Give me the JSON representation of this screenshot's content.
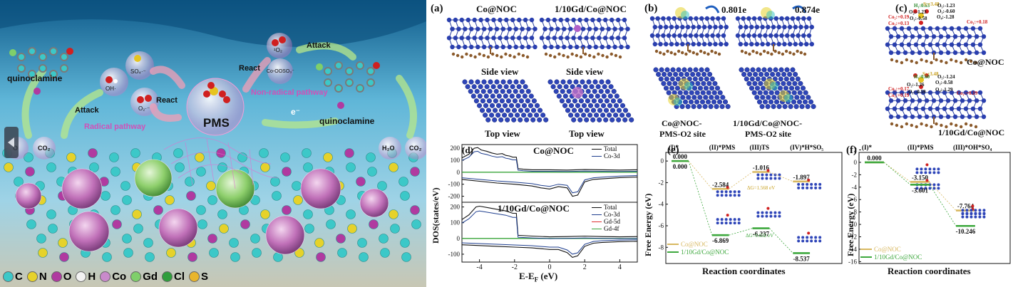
{
  "scheme": {
    "labels": {
      "quinoclamine_left": "quinoclamine",
      "quinoclamine_right": "quinoclamine",
      "pms": "PMS",
      "radical_pathway": "Radical pathway",
      "nonradical_pathway": "Non-radical pathway",
      "attack_left": "Attack",
      "attack_right": "Attack",
      "react_left": "React",
      "react_right": "React",
      "electron": "e⁻",
      "oh_radical": "OH·",
      "so4_radical": "SO₄·⁻",
      "o2_radical": "O₂·⁻",
      "singlet_o2": "¹O₂",
      "co_ooso3": "Co-OOSO₃⁻",
      "h2o_left": "O",
      "co2_left": "CO₂",
      "h2o_right": "H₂O",
      "co2_right": "CO₂"
    },
    "legend": [
      {
        "symbol": "C",
        "color": "#3cc8c8"
      },
      {
        "symbol": "N",
        "color": "#e6d22a"
      },
      {
        "symbol": "O",
        "color": "#b03aa0"
      },
      {
        "symbol": "H",
        "color": "#f2f2f2"
      },
      {
        "symbol": "Co",
        "color": "#c98acb"
      },
      {
        "symbol": "Gd",
        "color": "#7fcf6a"
      },
      {
        "symbol": "Cl",
        "color": "#2f9e3c"
      },
      {
        "symbol": "S",
        "color": "#e9b52c"
      }
    ]
  },
  "panel_a": {
    "tag": "(a)",
    "col1": "Co@NOC",
    "col2": "1/10Gd/Co@NOC",
    "side": "Side view",
    "top": "Top view"
  },
  "panel_b": {
    "tag": "(b)",
    "charge1": "0.801e",
    "charge2": "0.874e",
    "site1_l1": "Co@NOC-",
    "site1_l2": "PMS-O2 site",
    "site2_l1": "1/10Gd/Co@NOC-",
    "site2_l2": "PMS-O2 site"
  },
  "panel_c": {
    "tag": "(c)",
    "name_top": "Co@NOC",
    "name_bottom": "1/10Gd/Co@NOC",
    "charges_top": [
      {
        "t": "H₁:0.63",
        "c": "#2e8b2e"
      },
      {
        "t": "S:+3.48",
        "c": "#c8a020"
      },
      {
        "t": "O₅:-1.23",
        "c": "#111"
      },
      {
        "t": "O₂:-1.23",
        "c": "#111"
      },
      {
        "t": "O₃:-0.60",
        "c": "#111"
      },
      {
        "t": "O₁:-0.58",
        "c": "#111"
      },
      {
        "t": "O₄:-1.28",
        "c": "#111"
      },
      {
        "t": "Co₂:+0.19",
        "c": "#d02020"
      },
      {
        "t": "Co₁:+0.18",
        "c": "#d02020"
      },
      {
        "t": "Co₃:+0.13",
        "c": "#d02020"
      }
    ],
    "charges_bottom": [
      {
        "t": "H₁:0.60",
        "c": "#2e8b2e"
      },
      {
        "t": "S:+3.48",
        "c": "#c8a020"
      },
      {
        "t": "O₅:-1.24",
        "c": "#111"
      },
      {
        "t": "O₂:-1.26",
        "c": "#111"
      },
      {
        "t": "O₃:-0.58",
        "c": "#111"
      },
      {
        "t": "O₄:-1.29",
        "c": "#111"
      },
      {
        "t": "O₁:-0.59",
        "c": "#111"
      },
      {
        "t": "Co₂:+0.17",
        "c": "#d02020"
      },
      {
        "t": "Co₃:+0.19",
        "c": "#d02020"
      },
      {
        "t": "Co₁:+0.19",
        "c": "#d02020"
      }
    ]
  },
  "panel_d": {
    "tag": "(d)",
    "title_top": "Co@NOC",
    "title_bottom": "1/10Gd/Co@NOC",
    "ylabel": "DOS(states/eV)",
    "xlabel": "E-E",
    "xlabel_sub": "F",
    "xlabel_unit": " (eV)",
    "legend_top": [
      {
        "name": "Total",
        "color": "#111"
      },
      {
        "name": "Co-3d",
        "color": "#1f3f8f"
      }
    ],
    "legend_bottom": [
      {
        "name": "Total",
        "color": "#111"
      },
      {
        "name": "Co-3d",
        "color": "#1f3f8f"
      },
      {
        "name": "Gd-5d",
        "color": "#e03030"
      },
      {
        "name": "Gd-4f",
        "color": "#3aa53a"
      }
    ],
    "xticks": [
      -4,
      -2,
      0,
      2,
      4
    ],
    "yticks_top": [
      200,
      100,
      0,
      -100,
      -200
    ],
    "yticks_bottom": [
      200,
      100,
      0,
      -100
    ]
  },
  "panel_e": {
    "tag": "(e)",
    "ylabel": "Free Energy (eV)",
    "xlabel": "Reaction coordinates",
    "steps": [
      "(I)*",
      "(II)*PMS",
      "(III)TS",
      "(IV)*H*SO₅"
    ],
    "legend": [
      {
        "name": "Co@NOC",
        "color": "#d8b860"
      },
      {
        "name": "1/10Gd/Co@NOC",
        "color": "#3ea83e"
      }
    ],
    "barrier1": "ΔG=1.568 eV",
    "barrier2": "ΔG=0.632 eV"
  },
  "panel_f": {
    "tag": "(f)",
    "ylabel": "Free Energy (eV)",
    "xlabel": "Reaction coordinates",
    "steps": [
      "(I)*",
      "(II)*PMS",
      "(III)*OH*SO₄"
    ],
    "legend": [
      {
        "name": "Co@NOC",
        "color": "#d8b860"
      },
      {
        "name": "1/10Gd/Co@NOC",
        "color": "#3ea83e"
      }
    ]
  },
  "chart_data": [
    {
      "type": "line",
      "panel": "e",
      "title": "",
      "xlabel": "Reaction coordinates",
      "ylabel": "Free Energy (eV)",
      "ylim": [
        -9.5,
        0.8
      ],
      "yticks": [
        0,
        -2,
        -4,
        -6,
        -8
      ],
      "categories": [
        "(I)*",
        "(II)*PMS",
        "(III)TS",
        "(IV)*H*SO₅"
      ],
      "series": [
        {
          "name": "Co@NOC",
          "values": [
            0.0,
            -2.584,
            -1.016,
            -1.897
          ],
          "labels": [
            "0.000",
            "-2.584",
            "-1.016",
            "-1.897"
          ]
        },
        {
          "name": "1/10Gd/Co@NOC",
          "values": [
            0.0,
            -6.869,
            -6.237,
            -8.537
          ],
          "labels": [
            "0.000",
            "-6.869",
            "-6.237",
            "-8.537"
          ]
        }
      ]
    },
    {
      "type": "line",
      "panel": "f",
      "title": "",
      "xlabel": "Reaction coordinates",
      "ylabel": "Free Energy (eV)",
      "ylim": [
        -16.3,
        1.6
      ],
      "yticks": [
        2,
        0,
        -2,
        -4,
        -6,
        -8,
        -10,
        -12,
        -14,
        -16
      ],
      "categories": [
        "(I)*",
        "(II)*PMS",
        "(III)*OH*SO₄"
      ],
      "series": [
        {
          "name": "Co@NOC",
          "values": [
            0.0,
            -3.15,
            -7.764
          ],
          "labels": [
            "0.000",
            "-3.150",
            "-7.764"
          ]
        },
        {
          "name": "1/10Gd/Co@NOC",
          "values": [
            0.0,
            -3.601,
            -10.246
          ],
          "labels": [
            "",
            "-3.601",
            "-10.246"
          ]
        }
      ]
    },
    {
      "type": "line",
      "panel": "d",
      "title": "",
      "xlabel": "E-EF (eV)",
      "ylabel": "DOS(states/eV)",
      "xlim": [
        -5,
        5
      ],
      "ylim_top": [
        -250,
        230
      ],
      "ylim_bottom": [
        -150,
        230
      ],
      "top_series": [
        {
          "name": "Total",
          "x": [
            -5,
            -4.6,
            -4.3,
            -4.1,
            -3.9,
            -3.6,
            -3.3,
            -3.0,
            -2.7,
            -2.5,
            -2.3,
            -2.1,
            -1.9,
            -1.8,
            -1.5,
            -1,
            0,
            1,
            2,
            3,
            4,
            5
          ],
          "y": [
            120,
            150,
            200,
            205,
            185,
            175,
            160,
            150,
            155,
            140,
            135,
            125,
            125,
            30,
            25,
            20,
            20,
            18,
            22,
            20,
            18,
            20
          ]
        },
        {
          "name": "Total-dn",
          "x": [
            -5,
            -4,
            -3,
            -2,
            -1,
            -0.5,
            0,
            0.5,
            1,
            1.3,
            1.6,
            2,
            2.5,
            3,
            4,
            5
          ],
          "y": [
            -60,
            -75,
            -90,
            -100,
            -115,
            -130,
            -140,
            -120,
            -130,
            -200,
            -190,
            -80,
            -60,
            -55,
            -45,
            -40
          ]
        }
      ],
      "bottom_series": [
        {
          "name": "Total",
          "x": [
            -5,
            -4.6,
            -4.2,
            -4.0,
            -3.5,
            -3,
            -2.5,
            -2.1,
            -1.9,
            -1.8,
            -1,
            0,
            1,
            2,
            3,
            4,
            5
          ],
          "y": [
            120,
            150,
            200,
            205,
            195,
            185,
            175,
            160,
            160,
            20,
            15,
            10,
            12,
            15,
            12,
            10,
            12
          ]
        },
        {
          "name": "Total-dn",
          "x": [
            -5,
            -4,
            -3,
            -2,
            -1,
            0,
            0.5,
            1,
            1.3,
            1.6,
            2,
            2.5,
            3,
            4,
            5
          ],
          "y": [
            -40,
            -45,
            -50,
            -55,
            -60,
            -70,
            -70,
            -90,
            -120,
            -110,
            -50,
            -30,
            -25,
            -20,
            -18
          ]
        }
      ]
    }
  ]
}
